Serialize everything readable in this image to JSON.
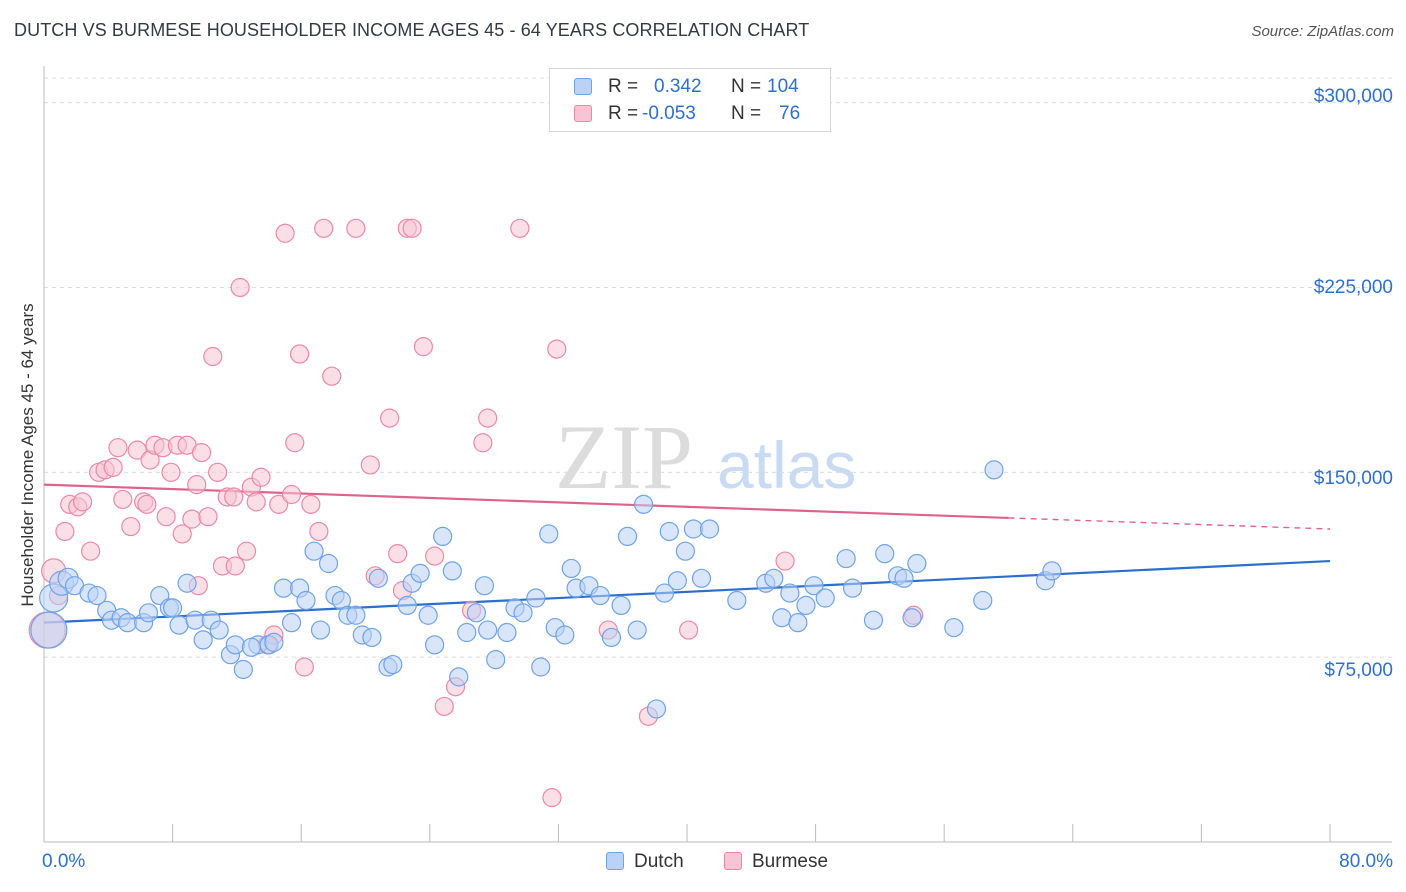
{
  "title": "DUTCH VS BURMESE HOUSEHOLDER INCOME AGES 45 - 64 YEARS CORRELATION CHART",
  "source": "Source: ZipAtlas.com",
  "watermark": {
    "zip": "ZIP",
    "atlas": "atlas"
  },
  "legend": {
    "rows": [
      {
        "r_label": "R =",
        "r_value": "0.342",
        "n_label": "N =",
        "n_value": "104"
      },
      {
        "r_label": "R =",
        "r_value": "-0.053",
        "n_label": "N =",
        "n_value": "76"
      }
    ]
  },
  "colors": {
    "dutch": "#6fa3e8",
    "dutch_fill": "#b9d2f5",
    "dutch_line": "#2a6fcf",
    "burmese": "#ec88a9",
    "burmese_fill": "#f7c4d4",
    "burmese_line": "#e0628c",
    "tick_text": "#2e6fd0"
  },
  "chart_data": {
    "type": "scatter",
    "title": "DUTCH VS BURMESE HOUSEHOLDER INCOME AGES 45 - 64 YEARS CORRELATION CHART",
    "xlabel": "",
    "ylabel": "Householder Income Ages 45 - 64 years",
    "xlim": [
      0,
      80
    ],
    "ylim": [
      0,
      310000
    ],
    "x_tick_labels": [
      "0.0%",
      "80.0%"
    ],
    "y_ticks": [
      {
        "value": 75000,
        "label": "$75,000"
      },
      {
        "value": 150000,
        "label": "$150,000"
      },
      {
        "value": 225000,
        "label": "$225,000"
      },
      {
        "value": 300000,
        "label": "$300,000"
      }
    ],
    "grid": "horizontal dashed",
    "legend_position": "bottom-center",
    "series": [
      {
        "name": "Dutch",
        "r": 0.342,
        "n": 104,
        "trend": {
          "x0": 0,
          "y0": 89000,
          "x1": 80,
          "y1": 114000,
          "dashed_from": null
        },
        "points": [
          [
            0.3,
            86000,
            18
          ],
          [
            0.6,
            99000,
            14
          ],
          [
            1.1,
            105000,
            12
          ],
          [
            1.5,
            107000,
            10
          ],
          [
            1.9,
            104000,
            9
          ],
          [
            2.8,
            101000,
            9
          ],
          [
            3.3,
            100000,
            9
          ],
          [
            3.9,
            94000,
            9
          ],
          [
            4.2,
            90000,
            9
          ],
          [
            4.8,
            91000,
            9
          ],
          [
            5.2,
            89000,
            9
          ],
          [
            6.2,
            89000,
            9
          ],
          [
            6.5,
            93000,
            9
          ],
          [
            7.2,
            100000,
            9
          ],
          [
            7.8,
            95000,
            9
          ],
          [
            8.4,
            88000,
            9
          ],
          [
            8.9,
            105000,
            9
          ],
          [
            9.4,
            90000,
            9
          ],
          [
            9.9,
            82000,
            9
          ],
          [
            10.4,
            90000,
            9
          ],
          [
            10.9,
            86000,
            9
          ],
          [
            11.6,
            76000,
            9
          ],
          [
            11.9,
            80000,
            9
          ],
          [
            12.4,
            70000,
            9
          ],
          [
            13.3,
            80000,
            9
          ],
          [
            14.0,
            80000,
            9
          ],
          [
            14.3,
            81000,
            9
          ],
          [
            14.9,
            103000,
            9
          ],
          [
            15.4,
            89000,
            9
          ],
          [
            15.9,
            103000,
            9
          ],
          [
            16.3,
            98000,
            9
          ],
          [
            16.8,
            118000,
            9
          ],
          [
            17.2,
            86000,
            9
          ],
          [
            17.7,
            113000,
            9
          ],
          [
            18.1,
            100000,
            9
          ],
          [
            18.5,
            98000,
            9
          ],
          [
            18.9,
            92000,
            9
          ],
          [
            19.4,
            92000,
            9
          ],
          [
            19.8,
            84000,
            9
          ],
          [
            20.4,
            83000,
            9
          ],
          [
            20.8,
            107000,
            9
          ],
          [
            21.4,
            71000,
            9
          ],
          [
            21.7,
            72000,
            9
          ],
          [
            22.6,
            96000,
            9
          ],
          [
            22.9,
            105000,
            9
          ],
          [
            23.4,
            109000,
            9
          ],
          [
            23.9,
            92000,
            9
          ],
          [
            24.3,
            80000,
            9
          ],
          [
            24.8,
            124000,
            9
          ],
          [
            25.4,
            110000,
            9
          ],
          [
            25.8,
            67000,
            9
          ],
          [
            26.3,
            85000,
            9
          ],
          [
            26.9,
            93000,
            9
          ],
          [
            27.4,
            104000,
            9
          ],
          [
            27.6,
            86000,
            9
          ],
          [
            28.1,
            74000,
            9
          ],
          [
            28.8,
            85000,
            9
          ],
          [
            29.3,
            95000,
            9
          ],
          [
            29.8,
            93000,
            9
          ],
          [
            30.6,
            99000,
            9
          ],
          [
            30.9,
            71000,
            9
          ],
          [
            31.4,
            125000,
            9
          ],
          [
            31.8,
            87000,
            9
          ],
          [
            32.4,
            84000,
            9
          ],
          [
            32.8,
            111000,
            9
          ],
          [
            33.1,
            103000,
            9
          ],
          [
            33.9,
            104000,
            9
          ],
          [
            34.6,
            100000,
            9
          ],
          [
            35.3,
            83000,
            9
          ],
          [
            35.9,
            96000,
            9
          ],
          [
            36.3,
            124000,
            9
          ],
          [
            36.9,
            86000,
            9
          ],
          [
            37.3,
            137000,
            9
          ],
          [
            38.6,
            101000,
            9
          ],
          [
            38.9,
            126000,
            9
          ],
          [
            39.4,
            106000,
            9
          ],
          [
            39.9,
            118000,
            9
          ],
          [
            40.4,
            127000,
            9
          ],
          [
            40.9,
            107000,
            9
          ],
          [
            41.4,
            127000,
            9
          ],
          [
            43.1,
            98000,
            9
          ],
          [
            44.9,
            105000,
            9
          ],
          [
            45.4,
            107000,
            9
          ],
          [
            45.9,
            91000,
            9
          ],
          [
            46.4,
            101000,
            9
          ],
          [
            46.9,
            89000,
            9
          ],
          [
            47.4,
            96000,
            9
          ],
          [
            47.9,
            104000,
            9
          ],
          [
            48.6,
            99000,
            9
          ],
          [
            49.9,
            115000,
            9
          ],
          [
            50.3,
            103000,
            9
          ],
          [
            51.6,
            90000,
            9
          ],
          [
            52.3,
            117000,
            9
          ],
          [
            53.1,
            108000,
            9
          ],
          [
            53.5,
            107000,
            9
          ],
          [
            54.0,
            91000,
            9
          ],
          [
            54.3,
            113000,
            9
          ],
          [
            56.6,
            87000,
            9
          ],
          [
            58.4,
            98000,
            9
          ],
          [
            59.1,
            151000,
            9
          ],
          [
            62.3,
            106000,
            9
          ],
          [
            62.7,
            110000,
            9
          ],
          [
            38.1,
            54000,
            9
          ],
          [
            12.9,
            79000,
            9
          ],
          [
            8.0,
            95000,
            9
          ]
        ]
      },
      {
        "name": "Burmese",
        "r": -0.053,
        "n": 76,
        "trend": {
          "x0": 0,
          "y0": 145000,
          "x1": 80,
          "y1": 127000,
          "dashed_from": 60
        },
        "points": [
          [
            0.2,
            86000,
            18
          ],
          [
            0.6,
            110000,
            12
          ],
          [
            0.9,
            100000,
            9
          ],
          [
            1.3,
            126000,
            9
          ],
          [
            1.6,
            137000,
            9
          ],
          [
            2.1,
            136000,
            9
          ],
          [
            2.4,
            138000,
            9
          ],
          [
            2.9,
            118000,
            9
          ],
          [
            3.4,
            150000,
            9
          ],
          [
            3.8,
            151000,
            9
          ],
          [
            4.3,
            152000,
            9
          ],
          [
            4.6,
            160000,
            9
          ],
          [
            4.9,
            139000,
            9
          ],
          [
            5.4,
            128000,
            9
          ],
          [
            5.8,
            159000,
            9
          ],
          [
            6.2,
            138000,
            9
          ],
          [
            6.4,
            137000,
            9
          ],
          [
            6.6,
            155000,
            9
          ],
          [
            6.9,
            161000,
            9
          ],
          [
            7.4,
            160000,
            9
          ],
          [
            7.6,
            132000,
            9
          ],
          [
            7.9,
            150000,
            9
          ],
          [
            8.3,
            161000,
            9
          ],
          [
            8.6,
            125000,
            9
          ],
          [
            8.9,
            161000,
            9
          ],
          [
            9.2,
            131000,
            9
          ],
          [
            9.5,
            145000,
            9
          ],
          [
            9.8,
            158000,
            9
          ],
          [
            10.2,
            132000,
            9
          ],
          [
            10.5,
            197000,
            9
          ],
          [
            10.8,
            150000,
            9
          ],
          [
            11.1,
            112000,
            9
          ],
          [
            11.4,
            140000,
            9
          ],
          [
            11.8,
            140000,
            9
          ],
          [
            12.2,
            225000,
            9
          ],
          [
            12.6,
            118000,
            9
          ],
          [
            12.9,
            144000,
            9
          ],
          [
            13.2,
            138000,
            9
          ],
          [
            13.5,
            148000,
            9
          ],
          [
            13.9,
            80000,
            9
          ],
          [
            14.3,
            84000,
            9
          ],
          [
            14.6,
            137000,
            9
          ],
          [
            15.0,
            247000,
            9
          ],
          [
            15.4,
            141000,
            9
          ],
          [
            15.6,
            162000,
            9
          ],
          [
            15.9,
            198000,
            9
          ],
          [
            16.2,
            71000,
            9
          ],
          [
            16.6,
            137000,
            9
          ],
          [
            17.1,
            126000,
            9
          ],
          [
            17.4,
            249000,
            9
          ],
          [
            17.9,
            189000,
            9
          ],
          [
            19.4,
            249000,
            9
          ],
          [
            20.3,
            153000,
            9
          ],
          [
            20.6,
            108000,
            9
          ],
          [
            21.5,
            172000,
            9
          ],
          [
            22.0,
            117000,
            9
          ],
          [
            22.3,
            102000,
            9
          ],
          [
            22.6,
            249000,
            9
          ],
          [
            22.9,
            249000,
            9
          ],
          [
            23.6,
            201000,
            9
          ],
          [
            24.9,
            55000,
            9
          ],
          [
            25.6,
            63000,
            9
          ],
          [
            26.6,
            94000,
            9
          ],
          [
            27.3,
            162000,
            9
          ],
          [
            27.6,
            172000,
            9
          ],
          [
            29.6,
            249000,
            9
          ],
          [
            31.6,
            18000,
            9
          ],
          [
            31.9,
            200000,
            9
          ],
          [
            35.1,
            86000,
            9
          ],
          [
            37.6,
            51000,
            9
          ],
          [
            40.1,
            86000,
            9
          ],
          [
            46.1,
            114000,
            9
          ],
          [
            54.1,
            92000,
            9
          ],
          [
            24.3,
            116000,
            9
          ],
          [
            11.9,
            112000,
            9
          ],
          [
            9.6,
            104000,
            9
          ]
        ]
      }
    ]
  }
}
